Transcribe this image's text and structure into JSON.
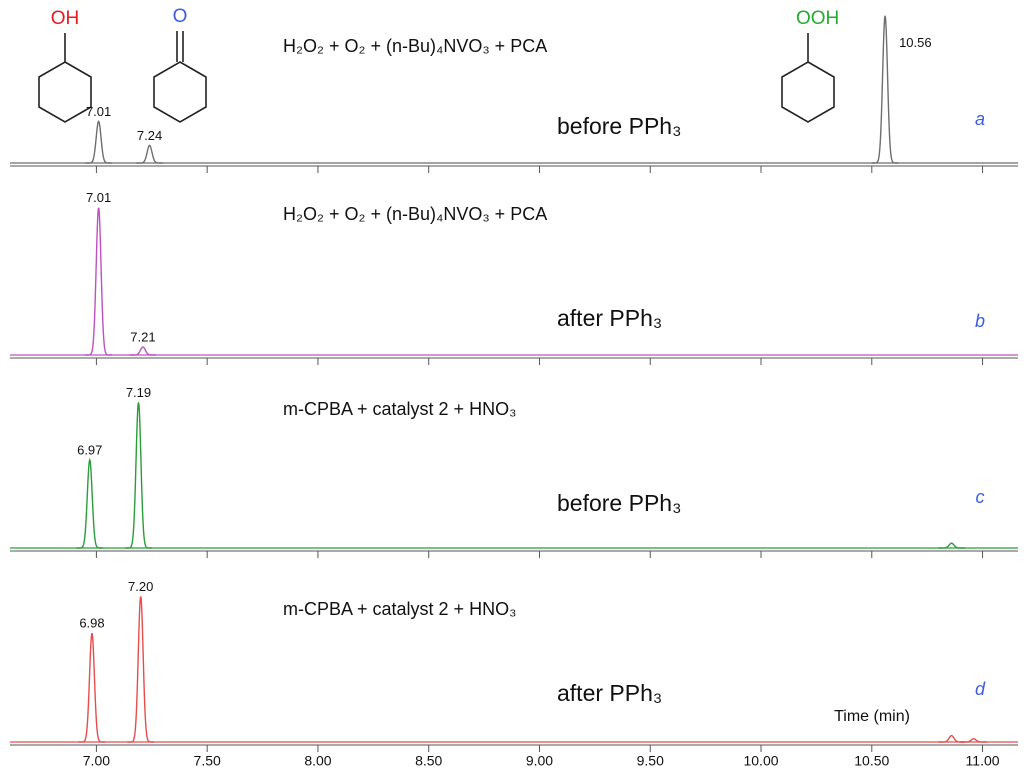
{
  "chart_data": [
    {
      "type": "line",
      "title": "H₂O₂ + O₂ + (n-Bu)₄NVO₃ + PCA",
      "subtitle": "before PPh₃",
      "panel": "a",
      "color": "#6e6e6e",
      "x": [
        7.01,
        7.24,
        10.56
      ],
      "values": [
        26,
        11,
        92
      ],
      "x_labels": [
        "7.01",
        "7.24",
        "10.56"
      ],
      "xlim": [
        6.61,
        11.16
      ],
      "ylim": [
        0,
        100
      ],
      "annotations": [
        {
          "text": "OH",
          "color": "#e8191f"
        },
        {
          "text": "O",
          "color": "#3a5de0"
        },
        {
          "text": "OOH",
          "color": "#1fae2e"
        }
      ]
    },
    {
      "type": "line",
      "title": "H₂O₂ + O₂ + (n-Bu)₄NVO₃ + PCA",
      "subtitle": "after PPh₃",
      "panel": "b",
      "color": "#c050c0",
      "x": [
        7.01,
        7.21
      ],
      "values": [
        92,
        5
      ],
      "x_labels": [
        "7.01",
        "7.21"
      ],
      "xlim": [
        6.61,
        11.16
      ],
      "ylim": [
        0,
        100
      ]
    },
    {
      "type": "line",
      "title": "m-CPBA + catalyst 2 + HNO₃",
      "subtitle": "before PPh₃",
      "panel": "c",
      "color": "#2a9d3a",
      "x": [
        6.97,
        7.19,
        10.86
      ],
      "values": [
        55,
        91,
        3
      ],
      "x_labels": [
        "6.97",
        "7.19",
        null
      ],
      "xlim": [
        6.61,
        11.16
      ],
      "ylim": [
        0,
        100
      ]
    },
    {
      "type": "line",
      "title": "m-CPBA + catalyst 2 + HNO₃",
      "subtitle": "after PPh₃",
      "panel": "d",
      "color": "#e84c4c",
      "x": [
        6.98,
        7.2,
        10.86,
        10.96
      ],
      "values": [
        68,
        91,
        4,
        2
      ],
      "x_labels": [
        "6.98",
        "7.20",
        null,
        null
      ],
      "xlim": [
        6.61,
        11.16
      ],
      "ylim": [
        0,
        100
      ],
      "xlabel": "Time (min)",
      "xticks": [
        {
          "value": 7,
          "label": "7.00"
        },
        {
          "value": 7.5,
          "label": "7.50"
        },
        {
          "value": 8,
          "label": "8.00"
        },
        {
          "value": 8.5,
          "label": "8.50"
        },
        {
          "value": 9,
          "label": "9.00"
        },
        {
          "value": 9.5,
          "label": "9.50"
        },
        {
          "value": 10,
          "label": "10.00"
        },
        {
          "value": 10.5,
          "label": "10.50"
        },
        {
          "value": 11,
          "label": "11.00"
        }
      ]
    }
  ]
}
